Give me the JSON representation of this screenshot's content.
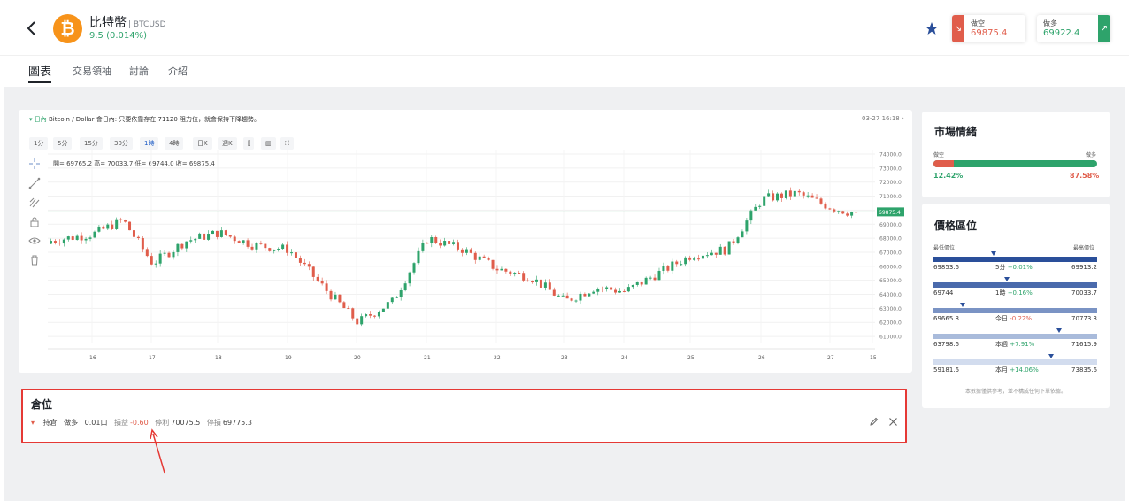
{
  "header": {
    "coin_name": "比特幣",
    "symbol": "BTCUSD",
    "change": "9.5 (0.014%)",
    "logo_glyph": "₿",
    "sell": {
      "label": "做空",
      "price": "69875.4",
      "icon": "arrow-down-right-icon"
    },
    "buy": {
      "label": "做多",
      "price": "69922.4",
      "icon": "arrow-up-right-icon"
    }
  },
  "tabs": [
    {
      "label": "圖表",
      "active": true
    },
    {
      "label": "交易領袖"
    },
    {
      "label": "討論"
    },
    {
      "label": "介紹"
    }
  ],
  "chart": {
    "title_marker": "▾ 日內",
    "title_text": "Bitcoin / Dollar 會日內: 只要依靠存在 71120 阻力位，就會保持下降趨勢。",
    "date": "03-27 16:18 ›",
    "intervals": [
      "1分",
      "5分",
      "15分",
      "30分",
      "1時",
      "4時",
      "日K",
      "週K"
    ],
    "active_interval": "1時",
    "ohlc": "開= 69765.2  高= 70033.7  低= 69744.0  收= 69875.4",
    "current_price": "69875.4"
  },
  "chart_data": {
    "type": "candlestick",
    "x_ticks": [
      "16",
      "17",
      "18",
      "19",
      "20",
      "21",
      "22",
      "23",
      "24",
      "25",
      "26",
      "27",
      "15"
    ],
    "y_ticks": [
      74000.0,
      73000.0,
      72000.0,
      71000.0,
      70000.0,
      69000.0,
      68000.0,
      67000.0,
      66000.0,
      65000.0,
      64000.0,
      63000.0,
      62000.0,
      61000.0
    ],
    "ylim": [
      60500,
      74000
    ],
    "current_price": 69875.4,
    "approx_close_path": [
      {
        "day": "16",
        "close": 68300
      },
      {
        "day": "16.5",
        "close": 69300
      },
      {
        "day": "17",
        "close": 66200
      },
      {
        "day": "17.5",
        "close": 67800
      },
      {
        "day": "18",
        "close": 68400
      },
      {
        "day": "18.5",
        "close": 67500
      },
      {
        "day": "19",
        "close": 67200
      },
      {
        "day": "19.5",
        "close": 64500
      },
      {
        "day": "20",
        "close": 62000
      },
      {
        "day": "20.5",
        "close": 63500
      },
      {
        "day": "21",
        "close": 68000
      },
      {
        "day": "21.5",
        "close": 67200
      },
      {
        "day": "22",
        "close": 65800
      },
      {
        "day": "22.5",
        "close": 65200
      },
      {
        "day": "23",
        "close": 63500
      },
      {
        "day": "23.5",
        "close": 64500
      },
      {
        "day": "24",
        "close": 64200
      },
      {
        "day": "24.5",
        "close": 65500
      },
      {
        "day": "25",
        "close": 66800
      },
      {
        "day": "25.5",
        "close": 67200
      },
      {
        "day": "26",
        "close": 70800
      },
      {
        "day": "26.5",
        "close": 71200
      },
      {
        "day": "27",
        "close": 70200
      },
      {
        "day": "27.4",
        "close": 69875
      }
    ]
  },
  "position": {
    "title": "倉位",
    "status": "持倉",
    "side": "做多",
    "amount": "0.01口",
    "pnl_label": "損益",
    "pnl_value": "-0.60",
    "tp_label": "停利",
    "tp_value": "70075.5",
    "sl_label": "停損",
    "sl_value": "69775.3"
  },
  "sentiment": {
    "title": "市場情緒",
    "short_label": "做空",
    "long_label": "做多",
    "short_pct": "12.42%",
    "long_pct": "87.58%",
    "short_fraction": 0.1242
  },
  "price_range": {
    "title": "價格區位",
    "low_header": "最低價位",
    "high_header": "最高價位",
    "rows": [
      {
        "low": "69853.6",
        "period": "5分",
        "change": "+0.01%",
        "high": "69913.2",
        "dir": "up",
        "marker": 0.37
      },
      {
        "low": "69744",
        "period": "1時",
        "change": "+0.16%",
        "high": "70033.7",
        "dir": "up",
        "marker": 0.45
      },
      {
        "low": "69665.8",
        "period": "今日",
        "change": "-0.22%",
        "high": "70773.3",
        "dir": "down",
        "marker": 0.18
      },
      {
        "low": "63798.6",
        "period": "本週",
        "change": "+7.91%",
        "high": "71615.9",
        "dir": "up",
        "marker": 0.77
      },
      {
        "low": "59181.6",
        "period": "本月",
        "change": "+14.06%",
        "high": "73835.6",
        "dir": "up",
        "marker": 0.72
      }
    ],
    "disclaimer": "本數據僅供參考，並不構成任何下單依據。"
  },
  "colors": {
    "up": "#2ea36b",
    "down": "#e05d4b",
    "accent": "#1e5cc5",
    "highlight": "#e53935"
  }
}
